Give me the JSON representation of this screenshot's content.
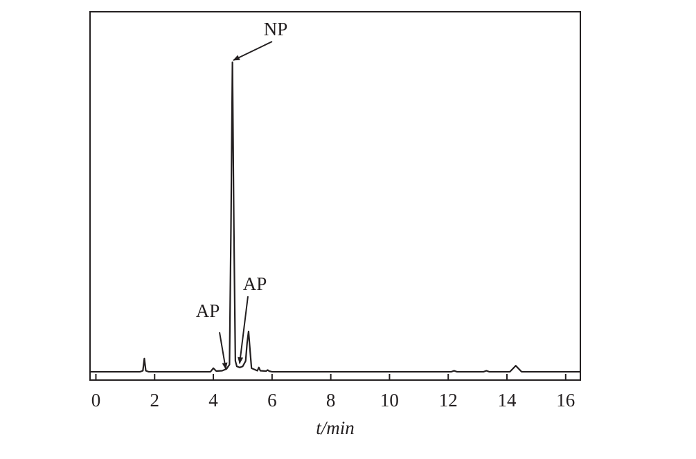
{
  "chart_data": {
    "type": "line",
    "x_label": "t/min",
    "annotations": [
      "NP",
      "AP",
      "AP"
    ],
    "xlim": [
      -0.2,
      16.5
    ],
    "xticks": [
      0,
      2,
      4,
      6,
      8,
      10,
      12,
      14,
      16
    ],
    "ylim": [
      -2.3,
      100
    ],
    "x": [
      -0.2,
      1.5,
      1.6,
      1.65,
      1.7,
      1.8,
      3.9,
      4.0,
      4.1,
      4.3,
      4.45,
      4.55,
      4.6,
      4.65,
      4.7,
      4.75,
      4.8,
      4.9,
      5.0,
      5.1,
      5.15,
      5.2,
      5.25,
      5.3,
      5.5,
      5.55,
      5.6,
      5.8,
      5.85,
      5.9,
      6.0,
      12.1,
      12.2,
      12.3,
      13.2,
      13.3,
      13.4,
      14.1,
      14.3,
      14.5,
      16.5
    ],
    "series": [
      {
        "color": "#231f20",
        "values": [
          0,
          0,
          0.3,
          3.7,
          0.3,
          0,
          0,
          1,
          0.2,
          0.3,
          0.8,
          2,
          40,
          86,
          40,
          3,
          1.5,
          1.2,
          1.5,
          3,
          8,
          11.2,
          6,
          1,
          0.3,
          1.2,
          0.3,
          0.2,
          0.5,
          0.2,
          0,
          0,
          0.3,
          0,
          0,
          0.3,
          0,
          0,
          1.7,
          0,
          0
        ]
      }
    ]
  }
}
